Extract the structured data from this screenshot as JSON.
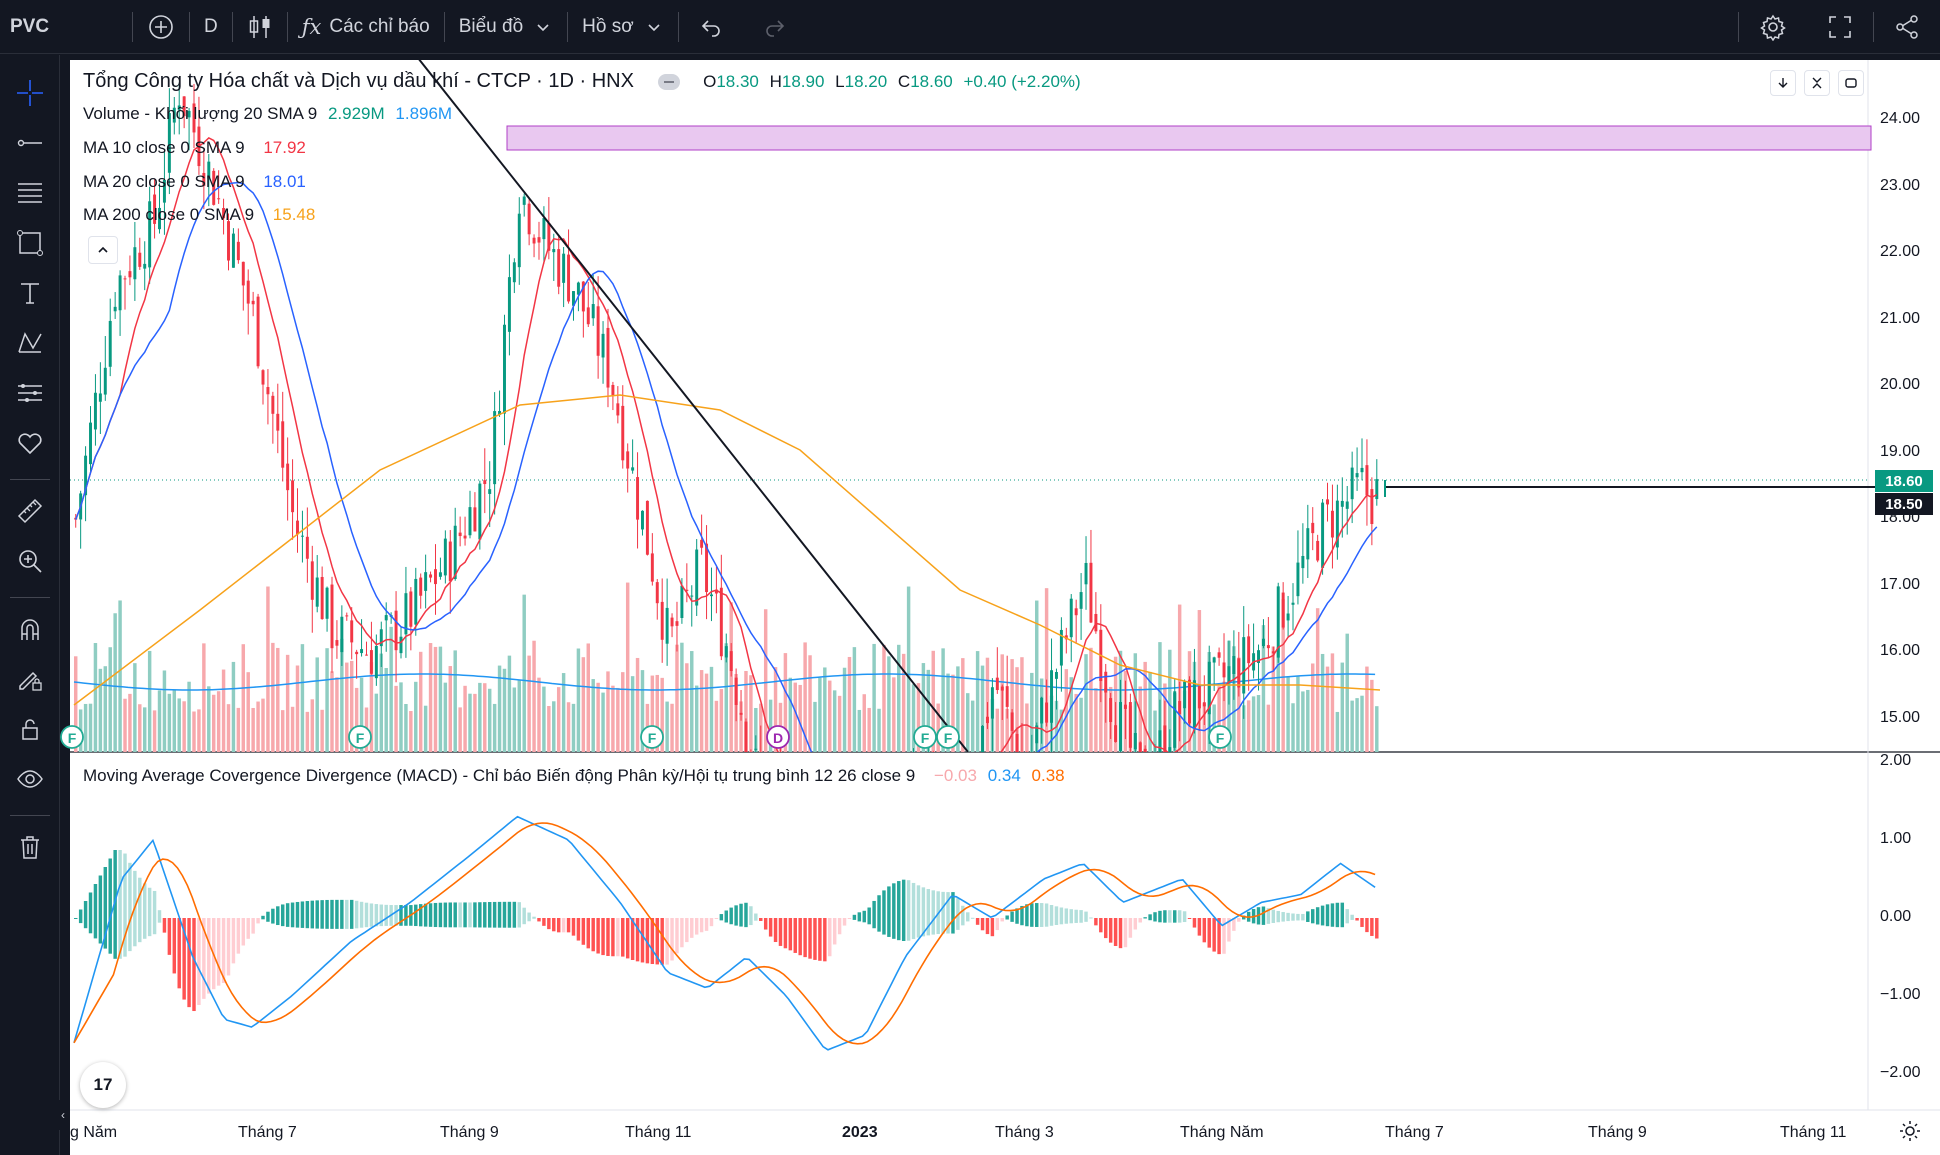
{
  "topbar": {
    "symbol": "PVC",
    "interval": "D",
    "indicators_label": "Các chỉ báo",
    "chart_label": "Biểu đồ",
    "profile_label": "Hồ sơ"
  },
  "legend": {
    "title": "Tổng Công ty Hóa chất và Dịch vụ dầu khí - CTCP · 1D · HNX",
    "open_label": "O",
    "open": "18.30",
    "high_label": "H",
    "high": "18.90",
    "low_label": "L",
    "low": "18.20",
    "close_label": "C",
    "close": "18.60",
    "change": "+0.40 (+2.20%)",
    "volume_label": "Volume - Khối lượng 20 SMA 9",
    "volume_value": "2.929M",
    "volume_sma": "1.896M",
    "ma10_label": "MA 10 close 0 SMA 9",
    "ma10_value": "17.92",
    "ma20_label": "MA 20 close 0 SMA 9",
    "ma20_value": "18.01",
    "ma200_label": "MA 200 close 0 SMA 9",
    "ma200_value": "15.48",
    "macd_label": "Moving Average Covergence Divergence (MACD) - Chỉ báo Biến động Phân kỳ/Hội tụ trung bình 12 26 close 9",
    "macd_hist": "−0.03",
    "macd_line": "0.34",
    "macd_signal": "0.38"
  },
  "price_axis": [
    "24.00",
    "23.00",
    "22.00",
    "21.00",
    "20.00",
    "19.00",
    "18.00",
    "17.00",
    "16.00",
    "15.00"
  ],
  "price_tags": {
    "last": "18.60",
    "line": "18.50"
  },
  "macd_axis": [
    "2.00",
    "1.00",
    "0.00",
    "−1.00",
    "−2.00"
  ],
  "time_axis": [
    "g Năm",
    "Tháng 7",
    "Tháng 9",
    "Tháng 11",
    "2023",
    "Tháng 3",
    "Tháng Năm",
    "Tháng 7",
    "Tháng 9",
    "Tháng 11"
  ],
  "event_markers": [
    "F",
    "F",
    "F",
    "D",
    "F",
    "F",
    "F"
  ],
  "logo_text": "17",
  "colors": {
    "up": "#089981",
    "down": "#f23645",
    "ma10": "#f23645",
    "ma20": "#2962ff",
    "ma200": "#f7a21b",
    "macd": "#2196f3",
    "signal": "#ff6d00",
    "zone": "#e9c8f0",
    "vol_up": "#8fcdc2",
    "vol_down": "#f7a8ac",
    "vol_sma": "#2196f3"
  },
  "icons": [
    "plus-circle-icon",
    "candles-icon",
    "fx-icon",
    "chevron-down-icon",
    "undo-icon",
    "redo-icon",
    "gear-icon",
    "fullscreen-icon",
    "share-icon",
    "crosshair-icon",
    "trend-line-icon",
    "fib-icon",
    "shapes-icon",
    "text-icon",
    "pattern-icon",
    "forecast-icon",
    "heart-icon",
    "ruler-icon",
    "zoom-icon",
    "magnet-icon",
    "lock-pencil-icon",
    "lock-icon",
    "eye-icon",
    "trash-icon"
  ]
}
